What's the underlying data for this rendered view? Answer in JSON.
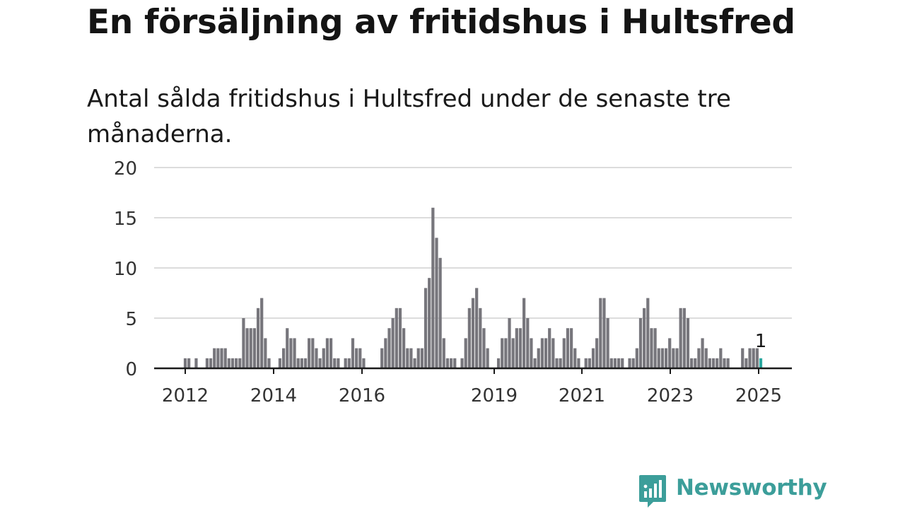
{
  "header": {
    "title": "En försäljning av fritidshus i Hultsfred",
    "subtitle": "Antal sålda fritidshus i Hultsfred under de senaste tre månaderna."
  },
  "chart_data": {
    "type": "bar",
    "title": "En försäljning av fritidshus i Hultsfred",
    "subtitle": "Antal sålda fritidshus i Hultsfred under de senaste tre månaderna.",
    "xlabel": "",
    "ylabel": "",
    "ylim": [
      0,
      20
    ],
    "y_ticks": [
      0,
      5,
      10,
      15,
      20
    ],
    "x_tick_labels": [
      "2012",
      "2014",
      "2016",
      "2019",
      "2021",
      "2023",
      "2025"
    ],
    "grid": "horizontal",
    "bar_color": "#77767c",
    "highlight_color": "#2aa8a0",
    "annotation": {
      "text": "1",
      "target": "last bar"
    },
    "series": [
      {
        "values": [
          1,
          1,
          0,
          1,
          0,
          0,
          1,
          1,
          2,
          2,
          2,
          2,
          1,
          1,
          1,
          1,
          5,
          4,
          4,
          4,
          6,
          7,
          3,
          1,
          0,
          0,
          1,
          2,
          4,
          3,
          3,
          1,
          1,
          1,
          3,
          3,
          2,
          1,
          2,
          3,
          3,
          1,
          1,
          0,
          1,
          1,
          3,
          2,
          2,
          1,
          0,
          0,
          0,
          0,
          2,
          3,
          4,
          5,
          6,
          6,
          4,
          2,
          2,
          1,
          2,
          2,
          8,
          9,
          16,
          13,
          11,
          3,
          1,
          1,
          1,
          0,
          1,
          3,
          6,
          7,
          8,
          6,
          4,
          2,
          0,
          0,
          1,
          3,
          3,
          5,
          3,
          4,
          4,
          7,
          5,
          3,
          1,
          2,
          3,
          3,
          4,
          3,
          1,
          1,
          3,
          4,
          4,
          2,
          1,
          0,
          1,
          1,
          2,
          3,
          7,
          7,
          5,
          1,
          1,
          1,
          1,
          0,
          1,
          1,
          2,
          5,
          6,
          7,
          4,
          4,
          2,
          2,
          2,
          3,
          2,
          2,
          6,
          6,
          5,
          1,
          1,
          2,
          3,
          2,
          1,
          1,
          1,
          2,
          1,
          1,
          0,
          0,
          0,
          2,
          1,
          2,
          2,
          2,
          1
        ]
      }
    ]
  },
  "brand": {
    "name": "Newsworthy",
    "color": "#3c9e9a",
    "icon": "newsworthy-logo-icon"
  }
}
